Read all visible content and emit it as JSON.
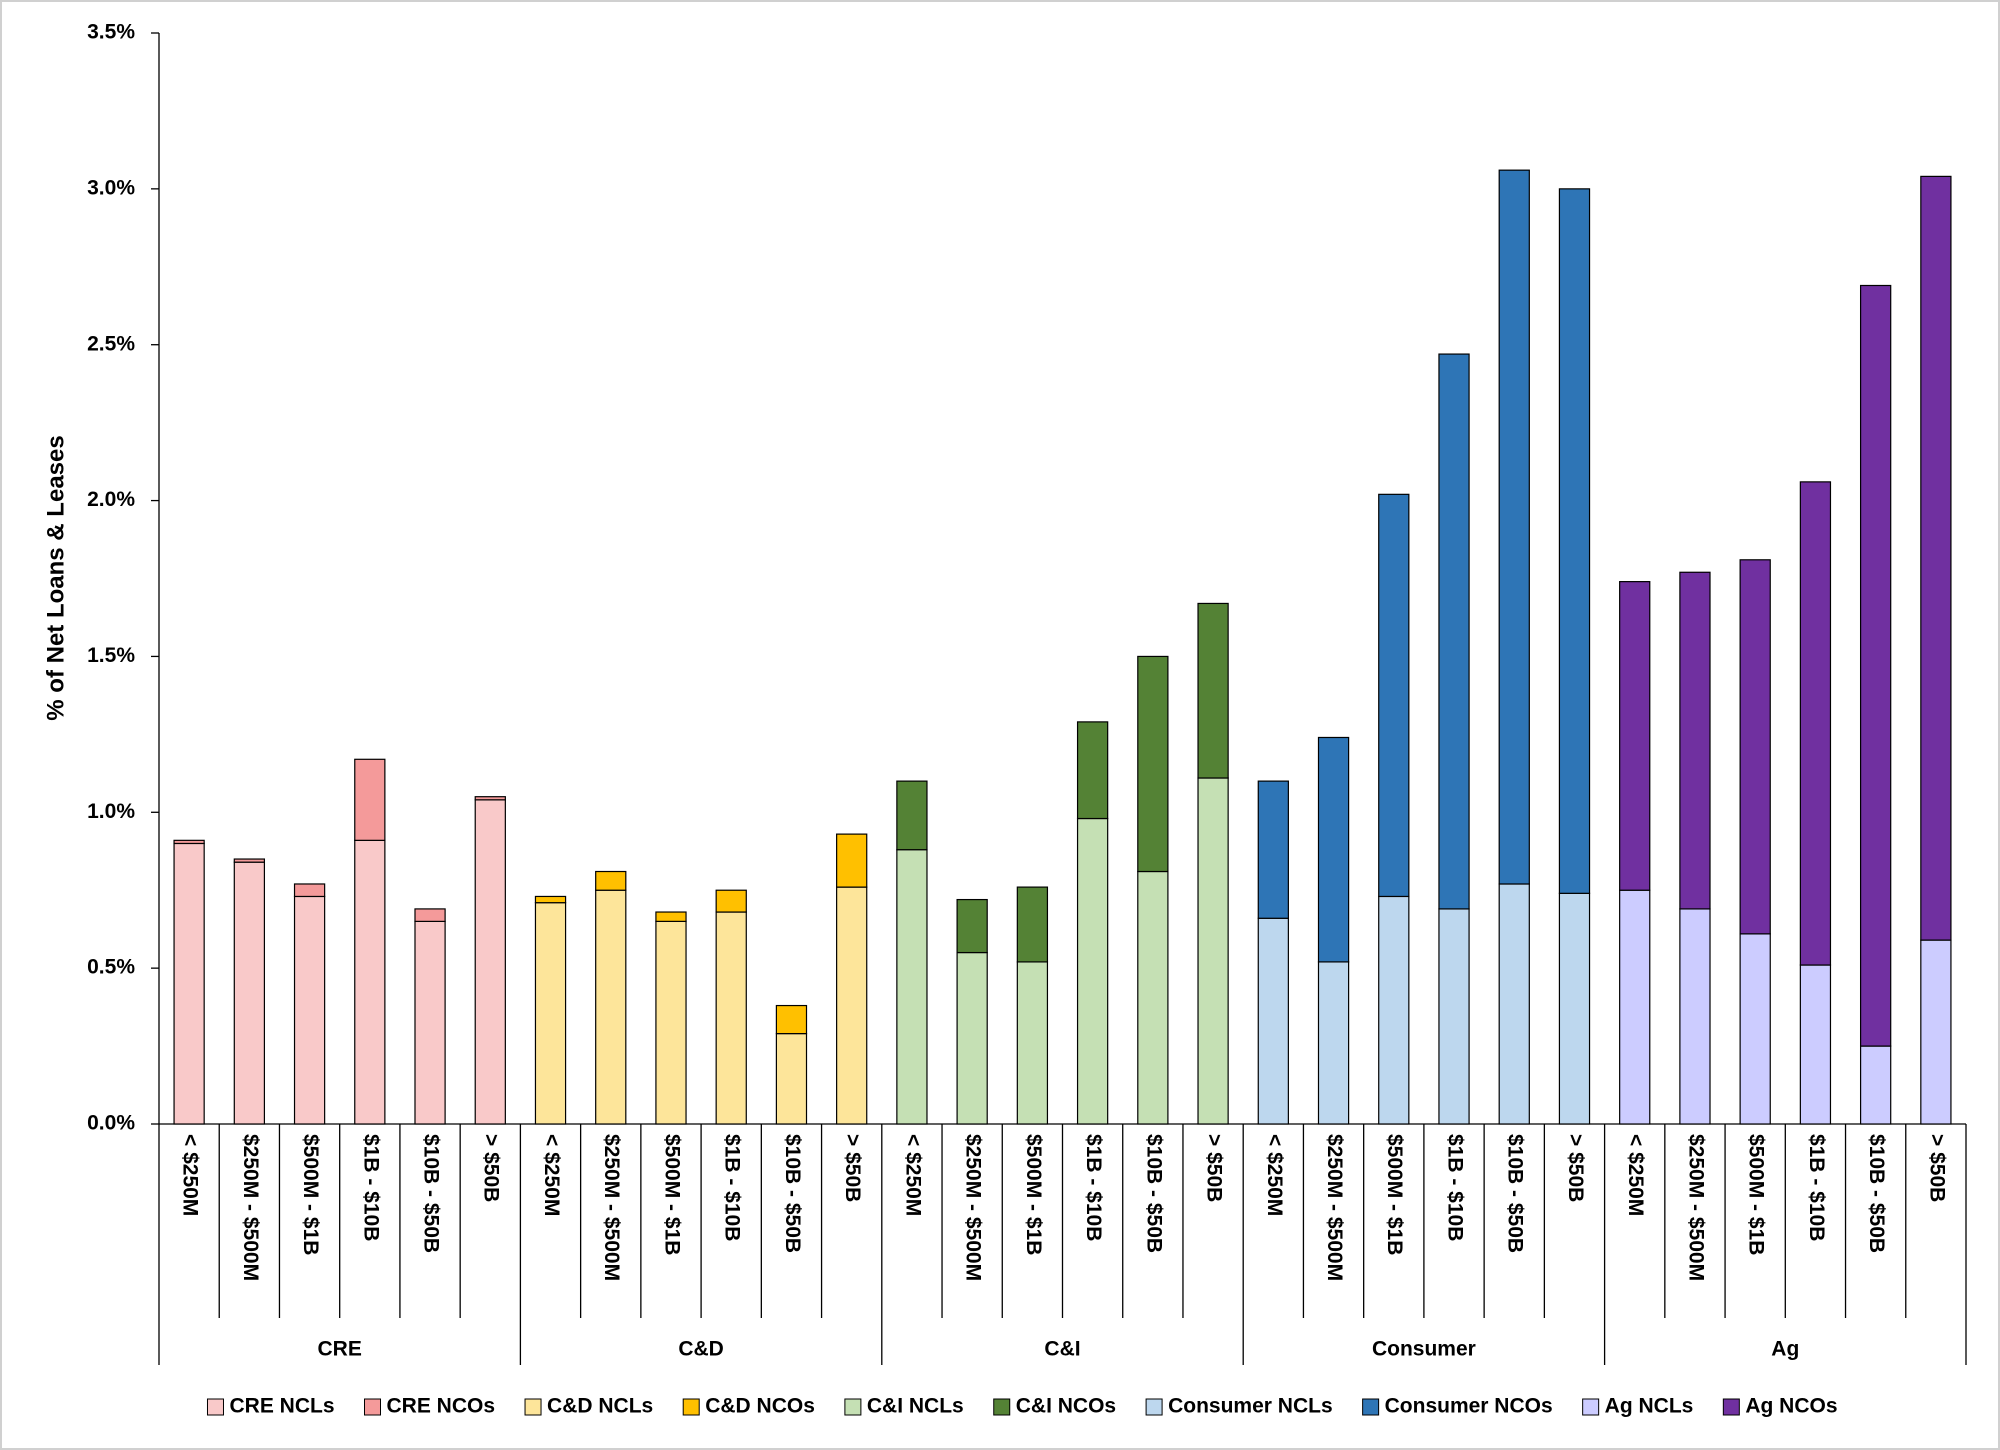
{
  "chart_data": {
    "type": "bar",
    "stacked": true,
    "y_label": "% of Net Loans & Leases",
    "ylim": [
      0,
      3.5
    ],
    "yticks": [
      {
        "value": 0,
        "label": "0.0%"
      },
      {
        "value": 0.5,
        "label": "0.5%"
      },
      {
        "value": 1,
        "label": "1.0%"
      },
      {
        "value": 1.5,
        "label": "1.5%"
      },
      {
        "value": 2,
        "label": "2.0%"
      },
      {
        "value": 2.5,
        "label": "2.5%"
      },
      {
        "value": 3,
        "label": "3.0%"
      },
      {
        "value": 3.5,
        "label": "3.5%"
      }
    ],
    "groups": [
      {
        "name": "CRE",
        "categories": [
          "< $250M",
          "$250M - $500M",
          "$500M - $1B",
          "$1B - $10B",
          "$10B - $50B",
          "> $50B"
        ],
        "series": [
          {
            "name": "CRE NCLs",
            "color": "#f9c9c9",
            "values": [
              0.9,
              0.84,
              0.73,
              0.91,
              0.65,
              1.04
            ]
          },
          {
            "name": "CRE NCOs",
            "color": "#f49a9a",
            "values": [
              0.01,
              0.01,
              0.04,
              0.26,
              0.04,
              0.01
            ]
          }
        ]
      },
      {
        "name": "C&D",
        "categories": [
          "< $250M",
          "$250M - $500M",
          "$500M - $1B",
          "$1B - $10B",
          "$10B - $50B",
          "> $50B"
        ],
        "series": [
          {
            "name": "C&D NCLs",
            "color": "#fde59a",
            "values": [
              0.71,
              0.75,
              0.65,
              0.68,
              0.29,
              0.76
            ]
          },
          {
            "name": "C&D NCOs",
            "color": "#ffc000",
            "values": [
              0.02,
              0.06,
              0.03,
              0.07,
              0.09,
              0.17
            ]
          }
        ]
      },
      {
        "name": "C&I",
        "categories": [
          "< $250M",
          "$250M - $500M",
          "$500M - $1B",
          "$1B - $10B",
          "$10B - $50B",
          "> $50B"
        ],
        "series": [
          {
            "name": "C&I NCLs",
            "color": "#c5e0b4",
            "values": [
              0.88,
              0.55,
              0.52,
              0.98,
              0.81,
              1.11
            ]
          },
          {
            "name": "C&I NCOs",
            "color": "#548235",
            "values": [
              0.22,
              0.17,
              0.24,
              0.31,
              0.69,
              0.56
            ]
          }
        ]
      },
      {
        "name": "Consumer",
        "categories": [
          "< $250M",
          "$250M - $500M",
          "$500M - $1B",
          "$1B - $10B",
          "$10B - $50B",
          "> $50B"
        ],
        "series": [
          {
            "name": "Consumer NCLs",
            "color": "#bdd7ee",
            "values": [
              0.66,
              0.52,
              0.73,
              0.69,
              0.77,
              0.74
            ]
          },
          {
            "name": "Consumer NCOs",
            "color": "#2e75b6",
            "values": [
              0.44,
              0.72,
              1.29,
              1.78,
              2.29,
              2.26
            ]
          }
        ]
      },
      {
        "name": "Ag",
        "categories": [
          "< $250M",
          "$250M - $500M",
          "$500M - $1B",
          "$1B - $10B",
          "$10B - $50B",
          "> $50B"
        ],
        "series": [
          {
            "name": "Ag NCLs",
            "color": "#ccccff",
            "values": [
              0.75,
              0.69,
              0.61,
              0.51,
              0.25,
              0.59
            ]
          },
          {
            "name": "Ag NCOs",
            "color": "#7030a0",
            "values": [
              0.99,
              1.08,
              1.2,
              1.55,
              2.44,
              2.45
            ]
          }
        ]
      }
    ]
  }
}
